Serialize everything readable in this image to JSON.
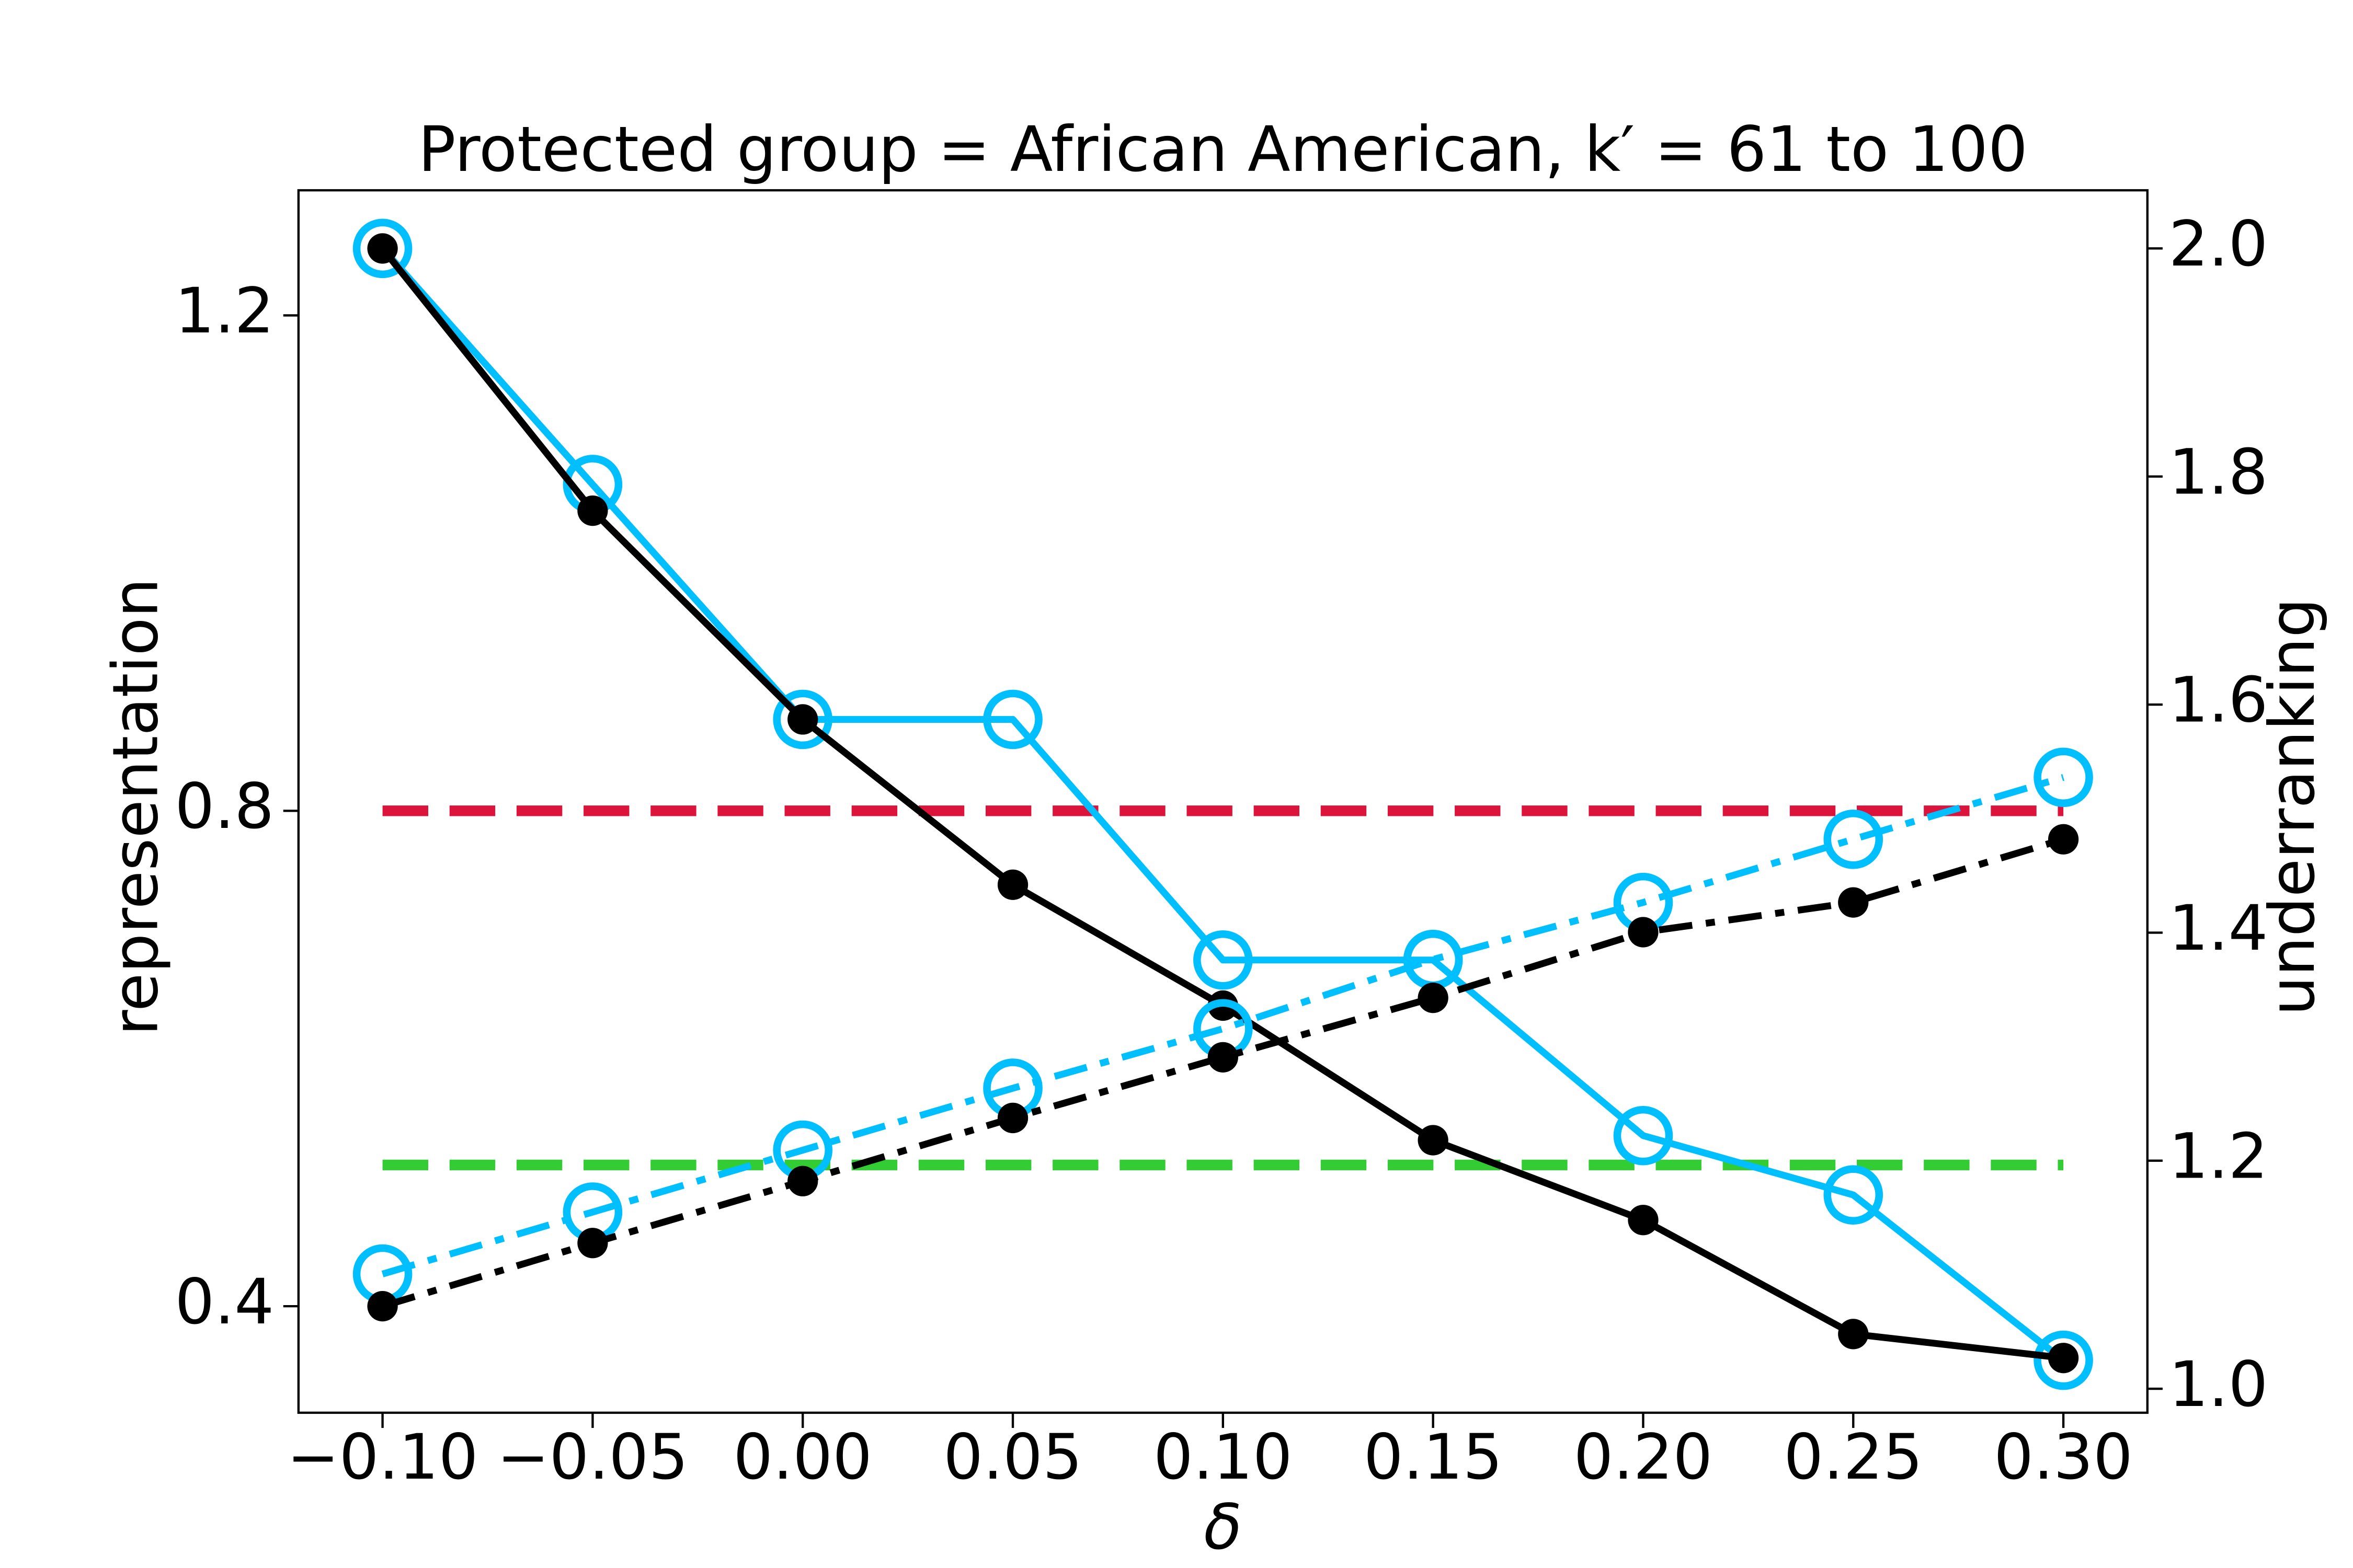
{
  "chart_data": {
    "type": "line",
    "title": "Protected group = African American, k′ = 61 to 100",
    "x_label": "δ",
    "y_label": "representation",
    "y2_label": "underranking",
    "x": [
      -0.1,
      -0.05,
      0.0,
      0.05,
      0.1,
      0.15,
      0.2,
      0.25,
      0.3
    ],
    "xlim": [
      -0.12,
      0.32
    ],
    "xticks": [
      {
        "value": -0.1,
        "label": "−0.10"
      },
      {
        "value": -0.05,
        "label": "−0.05"
      },
      {
        "value": 0,
        "label": "0.00"
      },
      {
        "value": 0.05,
        "label": "0.05"
      },
      {
        "value": 0.1,
        "label": "0.10"
      },
      {
        "value": 0.15,
        "label": "0.15"
      },
      {
        "value": 0.2,
        "label": "0.20"
      },
      {
        "value": 0.25,
        "label": "0.25"
      },
      {
        "value": 0.3,
        "label": "0.30"
      }
    ],
    "ylim": [
      0.314,
      1.301
    ],
    "yticks": [
      0.4,
      0.8,
      1.2
    ],
    "y2lim": [
      0.979,
      2.051
    ],
    "y2ticks": [
      {
        "value": 1,
        "label": "1.0"
      },
      1.2,
      1.4,
      1.6,
      1.8,
      {
        "value": 2,
        "label": "2.0"
      }
    ],
    "grid": false,
    "series": [
      {
        "color": "#dc143c",
        "linestyle": "dashed",
        "marker": "none",
        "axis": "y",
        "values": [
          0.8,
          0.8,
          0.8,
          0.8,
          0.8,
          0.8,
          0.8,
          0.8,
          0.8
        ]
      },
      {
        "color": "#32cd32",
        "linestyle": "dashed",
        "marker": "none",
        "axis": "y",
        "values": [
          0.514,
          0.514,
          0.514,
          0.514,
          0.514,
          0.514,
          0.514,
          0.514,
          0.514
        ]
      },
      {
        "color": "#00bfff",
        "linestyle": "solid",
        "marker": "hollow",
        "axis": "y2",
        "values": [
          2.0,
          1.793,
          1.587,
          1.587,
          1.376,
          1.376,
          1.222,
          1.17,
          1.025
        ]
      },
      {
        "color": "#000000",
        "linestyle": "solid",
        "marker": "filled",
        "axis": "y2",
        "values": [
          2.0,
          1.77,
          1.587,
          1.442,
          1.336,
          1.218,
          1.148,
          1.048,
          1.027
        ]
      },
      {
        "color": "#00bfff",
        "linestyle": "dashdot",
        "marker": "hollow",
        "axis": "y",
        "values": [
          0.426,
          0.476,
          0.526,
          0.576,
          0.624,
          0.68,
          0.726,
          0.777,
          0.827
        ]
      },
      {
        "color": "#000000",
        "linestyle": "dashdot",
        "marker": "filled",
        "axis": "y",
        "values": [
          0.4,
          0.451,
          0.501,
          0.552,
          0.601,
          0.649,
          0.702,
          0.726,
          0.777
        ]
      }
    ]
  }
}
